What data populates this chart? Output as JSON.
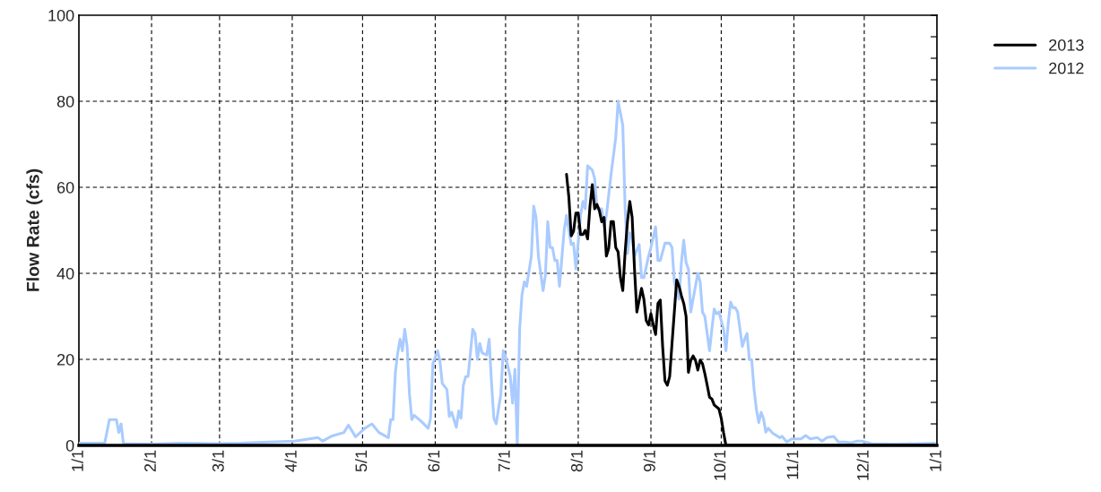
{
  "chart_data": {
    "type": "line",
    "ylabel": "Flow Rate (cfs)",
    "xlim": [
      "2012-01-01",
      "2013-01-01"
    ],
    "ylim": [
      0,
      100
    ],
    "xticks": [
      {
        "value": "2012-01-01",
        "label": "1/1"
      },
      {
        "value": "2012-02-01",
        "label": "2/1"
      },
      {
        "value": "2012-03-01",
        "label": "3/1"
      },
      {
        "value": "2012-04-01",
        "label": "4/1"
      },
      {
        "value": "2012-05-01",
        "label": "5/1"
      },
      {
        "value": "2012-06-01",
        "label": "6/1"
      },
      {
        "value": "2012-07-01",
        "label": "7/1"
      },
      {
        "value": "2012-08-01",
        "label": "8/1"
      },
      {
        "value": "2012-09-01",
        "label": "9/1"
      },
      {
        "value": "2012-10-01",
        "label": "10/1"
      },
      {
        "value": "2012-11-01",
        "label": "11/1"
      },
      {
        "value": "2012-12-01",
        "label": "12/1"
      },
      {
        "value": "2013-01-01",
        "label": "1/1"
      }
    ],
    "yticks": [
      0,
      {
        "value": 5,
        "label": null
      },
      {
        "value": 10,
        "label": null
      },
      {
        "value": 15,
        "label": null
      },
      20,
      {
        "value": 25,
        "label": null
      },
      {
        "value": 30,
        "label": null
      },
      {
        "value": 35,
        "label": null
      },
      40,
      {
        "value": 45,
        "label": null
      },
      {
        "value": 50,
        "label": null
      },
      {
        "value": 55,
        "label": null
      },
      60,
      {
        "value": 65,
        "label": null
      },
      {
        "value": 70,
        "label": null
      },
      {
        "value": 75,
        "label": null
      },
      80,
      {
        "value": 85,
        "label": null
      },
      {
        "value": 90,
        "label": null
      },
      {
        "value": 95,
        "label": null
      },
      100
    ],
    "grid": true,
    "legend": "right",
    "line_style": "solid",
    "marker": "none",
    "series": [
      {
        "name": "2013",
        "color": "#000000",
        "x": [
          "2012-07-27",
          "2012-07-28",
          "2012-07-29",
          "2012-07-30",
          "2012-07-31",
          "2012-08-01",
          "2012-08-02",
          "2012-08-03",
          "2012-08-04",
          "2012-08-05",
          "2012-08-06",
          "2012-08-07",
          "2012-08-08",
          "2012-08-09",
          "2012-08-10",
          "2012-08-11",
          "2012-08-12",
          "2012-08-13",
          "2012-08-14",
          "2012-08-15",
          "2012-08-16",
          "2012-08-17",
          "2012-08-18",
          "2012-08-19",
          "2012-08-20",
          "2012-08-21",
          "2012-08-22",
          "2012-08-23",
          "2012-08-24",
          "2012-08-25",
          "2012-08-26",
          "2012-08-28",
          "2012-08-29",
          "2012-08-30",
          "2012-08-31",
          "2012-09-01",
          "2012-09-02",
          "2012-09-03",
          "2012-09-04",
          "2012-09-05",
          "2012-09-06",
          "2012-09-07",
          "2012-09-08",
          "2012-09-09",
          "2012-09-10",
          "2012-09-12",
          "2012-09-13",
          "2012-09-14",
          "2012-09-15",
          "2012-09-16",
          "2012-09-17",
          "2012-09-18",
          "2012-09-19",
          "2012-09-20",
          "2012-09-21",
          "2012-09-22",
          "2012-09-23",
          "2012-09-24",
          "2012-09-25",
          "2012-09-26",
          "2012-09-27",
          "2012-09-28",
          "2012-09-30",
          "2012-10-01",
          "2012-10-02",
          "2012-10-03",
          "2012-12-31"
        ],
        "values": [
          63,
          57.7,
          48.7,
          49.8,
          54,
          54,
          49,
          49,
          50,
          48,
          55.6,
          60.6,
          55,
          56,
          54.6,
          52,
          53,
          44,
          45.8,
          52,
          52,
          46,
          45,
          39,
          36,
          45,
          52,
          56.7,
          53,
          41,
          31,
          36.5,
          34,
          29,
          28,
          30.6,
          28,
          25.8,
          33,
          33.8,
          23,
          15,
          14,
          16,
          23.7,
          38.5,
          37,
          34.8,
          33,
          30,
          17,
          19.8,
          20.8,
          19.8,
          17.5,
          19.8,
          19,
          16.7,
          14,
          11.2,
          10.8,
          9.4,
          8.5,
          6.3,
          2.9,
          0,
          0
        ]
      },
      {
        "name": "2012",
        "color": "#a9cbff",
        "x": [
          "2012-01-01",
          "2012-01-12",
          "2012-01-14",
          "2012-01-17",
          "2012-01-18",
          "2012-01-19",
          "2012-01-20",
          "2012-02-01",
          "2012-02-13",
          "2012-02-29",
          "2012-03-10",
          "2012-03-22",
          "2012-04-02",
          "2012-04-12",
          "2012-04-14",
          "2012-04-18",
          "2012-04-23",
          "2012-04-25",
          "2012-04-28",
          "2012-05-02",
          "2012-05-05",
          "2012-05-08",
          "2012-05-12",
          "2012-05-13",
          "2012-05-14",
          "2012-05-15",
          "2012-05-16",
          "2012-05-17",
          "2012-05-18",
          "2012-05-19",
          "2012-05-20",
          "2012-05-21",
          "2012-05-22",
          "2012-05-23",
          "2012-05-26",
          "2012-05-29",
          "2012-05-30",
          "2012-05-31",
          "2012-06-02",
          "2012-06-03",
          "2012-06-04",
          "2012-06-06",
          "2012-06-07",
          "2012-06-08",
          "2012-06-10",
          "2012-06-11",
          "2012-06-12",
          "2012-06-13",
          "2012-06-14",
          "2012-06-15",
          "2012-06-17",
          "2012-06-18",
          "2012-06-19",
          "2012-06-20",
          "2012-06-21",
          "2012-06-23",
          "2012-06-24",
          "2012-06-25",
          "2012-06-26",
          "2012-06-27",
          "2012-06-29",
          "2012-06-30",
          "2012-07-01",
          "2012-07-03",
          "2012-07-04",
          "2012-07-05",
          "2012-07-06",
          "2012-07-07",
          "2012-07-08",
          "2012-07-09",
          "2012-07-10",
          "2012-07-12",
          "2012-07-13",
          "2012-07-14",
          "2012-07-15",
          "2012-07-17",
          "2012-07-18",
          "2012-07-19",
          "2012-07-20",
          "2012-07-21",
          "2012-07-22",
          "2012-07-23",
          "2012-07-24",
          "2012-07-26",
          "2012-07-27",
          "2012-07-29",
          "2012-07-30",
          "2012-07-31",
          "2012-08-02",
          "2012-08-03",
          "2012-08-04",
          "2012-08-05",
          "2012-08-07",
          "2012-08-08",
          "2012-08-09",
          "2012-08-11",
          "2012-08-12",
          "2012-08-13",
          "2012-08-15",
          "2012-08-17",
          "2012-08-18",
          "2012-08-20",
          "2012-08-21",
          "2012-08-22",
          "2012-08-23",
          "2012-08-24",
          "2012-08-25",
          "2012-08-27",
          "2012-08-28",
          "2012-08-29",
          "2012-08-31",
          "2012-09-01",
          "2012-09-03",
          "2012-09-04",
          "2012-09-05",
          "2012-09-07",
          "2012-09-09",
          "2012-09-10",
          "2012-09-11",
          "2012-09-13",
          "2012-09-14",
          "2012-09-15",
          "2012-09-16",
          "2012-09-17",
          "2012-09-18",
          "2012-09-19",
          "2012-09-21",
          "2012-09-22",
          "2012-09-23",
          "2012-09-24",
          "2012-09-26",
          "2012-09-27",
          "2012-09-28",
          "2012-09-29",
          "2012-09-30",
          "2012-10-02",
          "2012-10-03",
          "2012-10-04",
          "2012-10-05",
          "2012-10-06",
          "2012-10-07",
          "2012-10-08",
          "2012-10-10",
          "2012-10-11",
          "2012-10-12",
          "2012-10-13",
          "2012-10-14",
          "2012-10-15",
          "2012-10-16",
          "2012-10-17",
          "2012-10-18",
          "2012-10-19",
          "2012-10-20",
          "2012-10-21",
          "2012-10-23",
          "2012-10-26",
          "2012-10-27",
          "2012-10-29",
          "2012-10-31",
          "2012-11-04",
          "2012-11-06",
          "2012-11-08",
          "2012-11-11",
          "2012-11-13",
          "2012-11-15",
          "2012-11-18",
          "2012-11-20",
          "2012-11-23",
          "2012-11-25",
          "2012-11-28",
          "2012-11-30",
          "2012-12-04",
          "2012-12-14",
          "2012-12-31"
        ],
        "values": [
          0.5,
          0.5,
          6,
          6,
          3,
          5,
          0.4,
          0.3,
          0.5,
          0.4,
          0.5,
          0.8,
          1,
          1.8,
          1,
          2.2,
          3,
          4.7,
          2,
          4,
          5,
          3,
          1.8,
          6,
          6,
          17,
          21.5,
          24.7,
          22,
          27,
          23,
          12,
          6,
          7,
          5.6,
          4,
          6.3,
          19,
          22,
          19.6,
          14.4,
          13,
          6.7,
          7.7,
          4.2,
          8,
          6.3,
          14,
          16,
          16,
          27,
          26,
          20,
          23.7,
          21.5,
          21,
          24.7,
          14.6,
          6.3,
          5,
          12,
          22,
          20.6,
          16,
          9.8,
          17.7,
          0,
          27,
          35,
          38,
          37,
          44,
          55.6,
          53,
          44,
          36,
          39.6,
          52,
          46,
          46,
          43,
          43,
          37,
          50,
          53.5,
          46.7,
          47,
          41,
          53.5,
          56.7,
          55,
          65,
          64,
          62,
          55,
          55,
          51,
          53.5,
          63,
          71.6,
          80,
          74.4,
          55,
          44.6,
          49.4,
          48,
          44,
          46.7,
          39,
          39,
          44,
          46,
          50.8,
          43,
          43,
          47,
          47,
          46,
          38,
          34,
          42.5,
          47.7,
          42.5,
          41,
          31,
          34,
          40,
          38,
          31,
          30,
          22,
          27,
          31.7,
          30.6,
          31,
          27,
          22,
          28.5,
          33.3,
          32,
          32,
          31,
          23,
          24.7,
          26,
          20,
          19.8,
          13,
          8.4,
          5.3,
          7.7,
          6.3,
          3.1,
          4,
          2.8,
          1.8,
          2.1,
          0.8,
          1.5,
          1.5,
          2.3,
          1.5,
          1.8,
          1,
          1.8,
          2.1,
          0.8,
          0.8,
          0.6,
          1,
          1,
          0.4,
          0.3,
          0.5
        ]
      }
    ]
  }
}
